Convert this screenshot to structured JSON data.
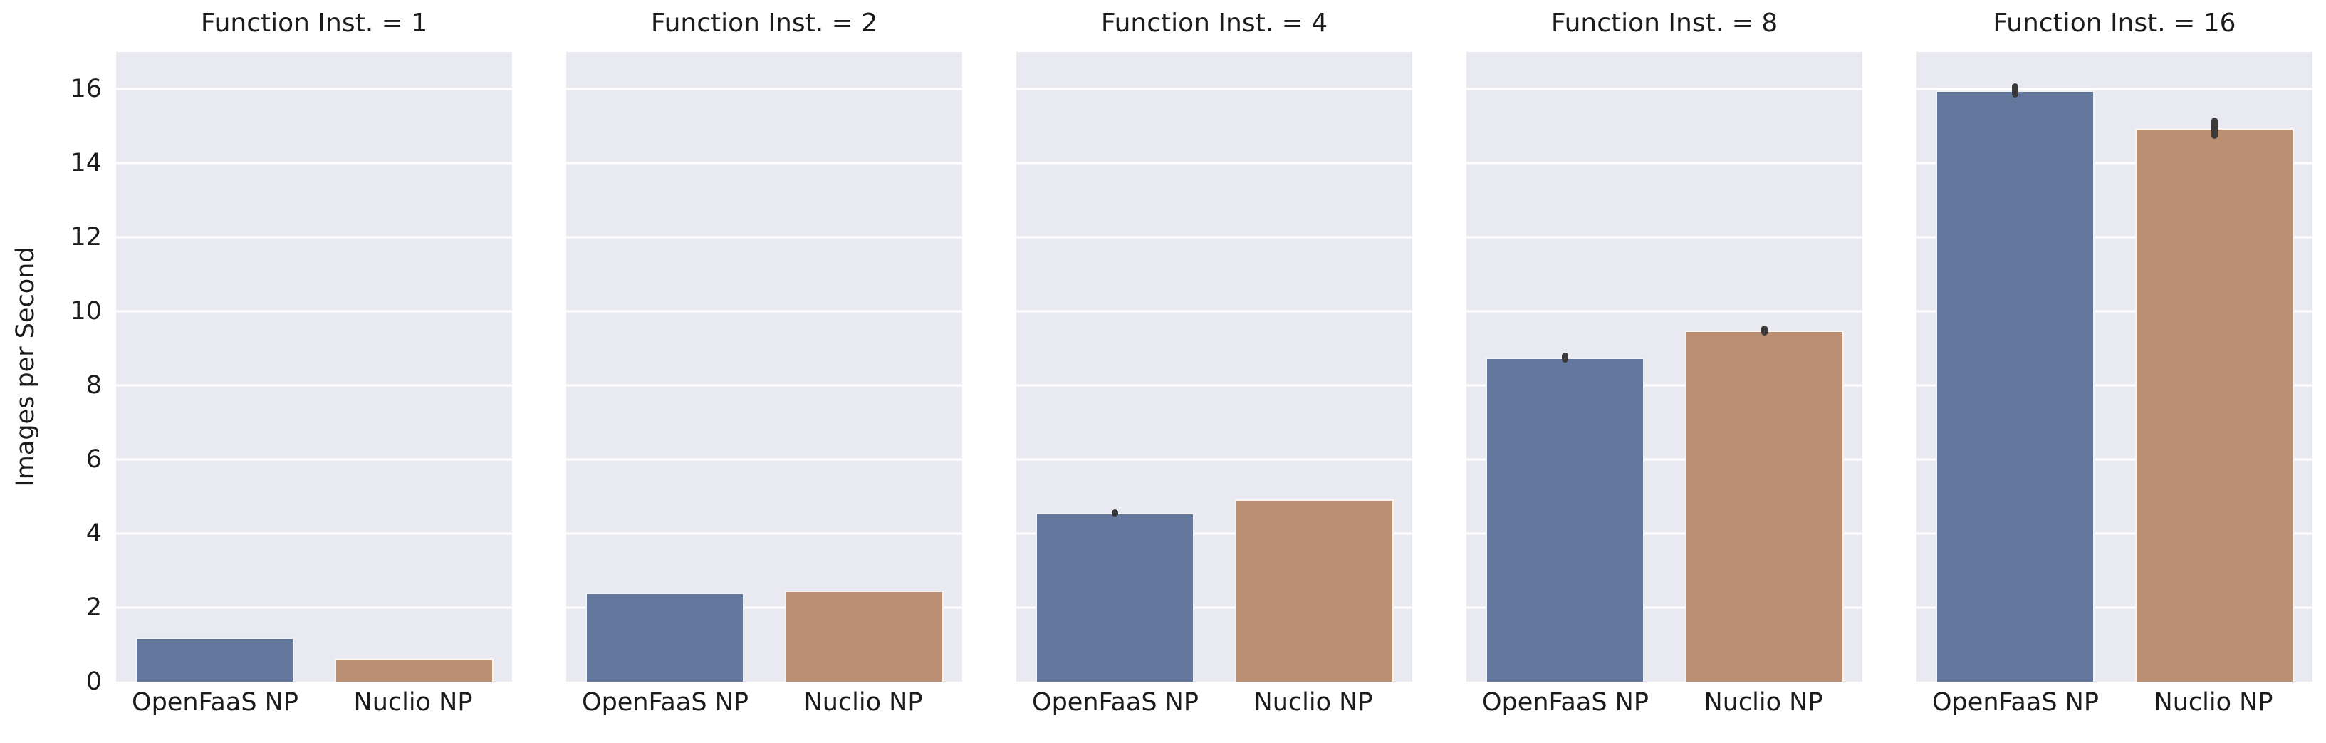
{
  "chart_data": {
    "type": "bar",
    "ylabel": "Images per Second",
    "categories": [
      "OpenFaaS NP",
      "Nuclio NP"
    ],
    "facets": [
      {
        "title": "Function Inst. = 1",
        "values": [
          1.19,
          0.63
        ],
        "errors": [
          0,
          0
        ]
      },
      {
        "title": "Function Inst. = 2",
        "values": [
          2.4,
          2.46
        ],
        "errors": [
          0,
          0
        ]
      },
      {
        "title": "Function Inst. = 4",
        "values": [
          4.55,
          4.92
        ],
        "errors": [
          0.11,
          0
        ]
      },
      {
        "title": "Function Inst. = 8",
        "values": [
          8.75,
          9.48
        ],
        "errors": [
          0.13,
          0.13
        ]
      },
      {
        "title": "Function Inst. = 16",
        "values": [
          15.96,
          14.94
        ],
        "errors": [
          0.19,
          0.29
        ]
      }
    ],
    "yticks": [
      0,
      2,
      4,
      6,
      8,
      10,
      12,
      14,
      16
    ],
    "ylim": [
      0,
      17
    ],
    "grid": true,
    "legend": "none",
    "colors": {
      "bar_openfaas_np": "#64789E",
      "bar_nuclio_np": "#BA8F74",
      "plot_background": "#E9E9F2",
      "gridline": "#FFFFFF",
      "error_bar": "#3A3A3A",
      "text": "#1B1B1B",
      "figure_background": "#FFFFFF"
    }
  }
}
